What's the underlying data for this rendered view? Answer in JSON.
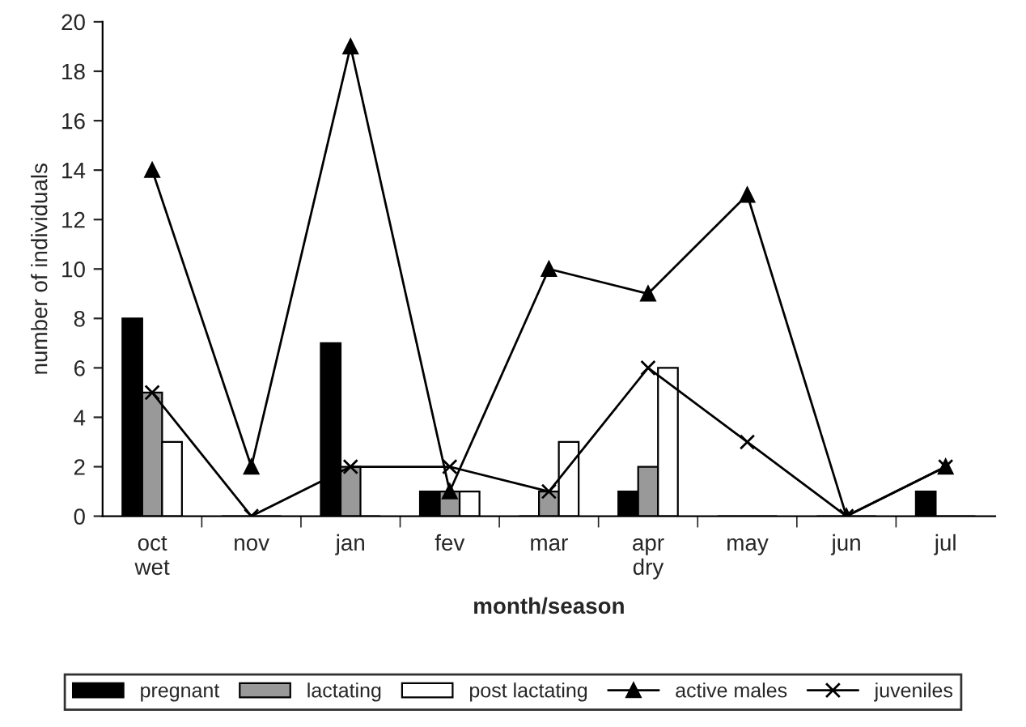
{
  "chart_data": {
    "type": "bar",
    "xlabel": "month/season",
    "ylabel": "number of individuals",
    "categories": [
      "oct\nwet",
      "nov",
      "jan",
      "fev",
      "mar",
      "apr\ndry",
      "may",
      "jun",
      "jul"
    ],
    "series": [
      {
        "name": "pregnant",
        "color": "#000000",
        "values": [
          8,
          0,
          7,
          1,
          0,
          1,
          0,
          0,
          1
        ]
      },
      {
        "name": "lactating",
        "color": "#999999",
        "values": [
          5,
          0,
          2,
          1,
          1,
          2,
          0,
          0,
          0
        ]
      },
      {
        "name": "post lactating",
        "color": "#ffffff",
        "values": [
          3,
          0,
          0,
          1,
          3,
          6,
          0,
          0,
          0
        ]
      },
      {
        "name": "active males",
        "type": "line",
        "marker": "triangle",
        "color": "#000000",
        "values": [
          14,
          2,
          19,
          1,
          10,
          9,
          13,
          0,
          2
        ]
      },
      {
        "name": "juveniles",
        "type": "line",
        "marker": "cross",
        "color": "#000000",
        "values": [
          5,
          0,
          2,
          2,
          1,
          6,
          3,
          0,
          2
        ]
      }
    ],
    "ylim": [
      0,
      20
    ],
    "yticks": [
      0,
      2,
      4,
      6,
      8,
      10,
      12,
      14,
      16,
      18,
      20
    ],
    "grid": false,
    "legend": "bottom"
  }
}
